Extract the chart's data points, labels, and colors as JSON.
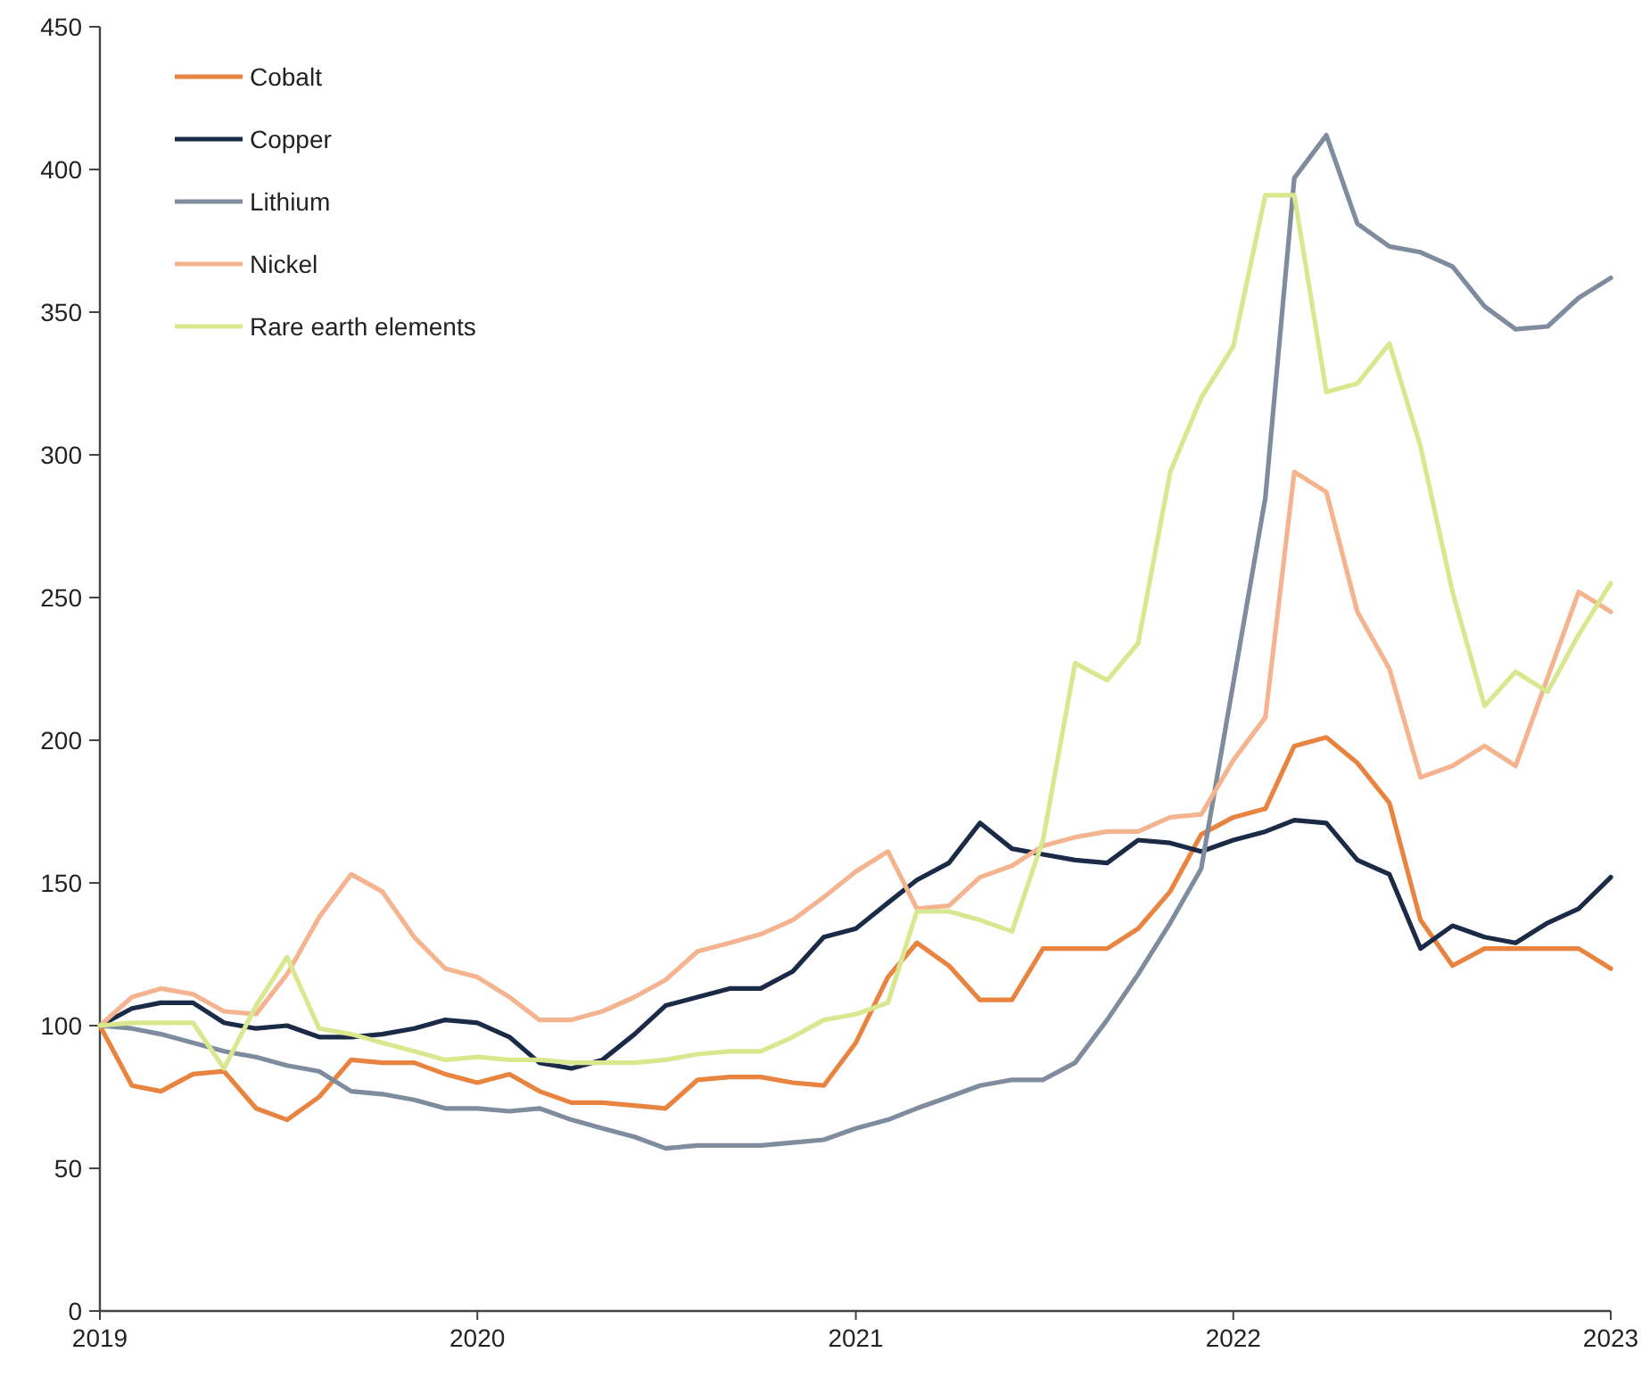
{
  "chart_data": {
    "type": "line",
    "x": [
      "2019-01",
      "2019-02",
      "2019-03",
      "2019-04",
      "2019-05",
      "2019-06",
      "2019-07",
      "2019-08",
      "2019-09",
      "2019-10",
      "2019-11",
      "2019-12",
      "2020-01",
      "2020-02",
      "2020-03",
      "2020-04",
      "2020-05",
      "2020-06",
      "2020-07",
      "2020-08",
      "2020-09",
      "2020-10",
      "2020-11",
      "2020-12",
      "2021-01",
      "2021-02",
      "2021-03",
      "2021-04",
      "2021-05",
      "2021-06",
      "2021-07",
      "2021-08",
      "2021-09",
      "2021-10",
      "2021-11",
      "2021-12",
      "2022-01",
      "2022-02",
      "2022-03",
      "2022-04",
      "2022-05",
      "2022-06",
      "2022-07",
      "2022-08",
      "2022-09",
      "2022-10",
      "2022-11",
      "2022-12",
      "2023-01"
    ],
    "series": [
      {
        "name": "Cobalt",
        "color": "#e8843f",
        "values": [
          100,
          79,
          77,
          83,
          84,
          71,
          67,
          75,
          88,
          87,
          87,
          83,
          80,
          83,
          77,
          73,
          73,
          72,
          71,
          81,
          82,
          82,
          80,
          79,
          94,
          117,
          129,
          121,
          109,
          109,
          127,
          127,
          127,
          134,
          147,
          167,
          173,
          176,
          198,
          201,
          192,
          178,
          137,
          121,
          127,
          127,
          127,
          127,
          120
        ]
      },
      {
        "name": "Copper",
        "color": "#1b2a47",
        "values": [
          100,
          106,
          108,
          108,
          101,
          99,
          100,
          96,
          96,
          97,
          99,
          102,
          101,
          96,
          87,
          85,
          88,
          97,
          107,
          110,
          113,
          113,
          119,
          131,
          134,
          143,
          151,
          157,
          171,
          162,
          160,
          158,
          157,
          165,
          164,
          161,
          165,
          168,
          172,
          171,
          158,
          153,
          127,
          135,
          131,
          129,
          136,
          141,
          152
        ]
      },
      {
        "name": "Lithium",
        "color": "#7f8c9e",
        "values": [
          100,
          99,
          97,
          94,
          91,
          89,
          86,
          84,
          77,
          76,
          74,
          71,
          71,
          70,
          71,
          67,
          64,
          61,
          57,
          58,
          58,
          58,
          59,
          60,
          64,
          67,
          71,
          75,
          79,
          81,
          81,
          87,
          102,
          118,
          136,
          155,
          220,
          285,
          397,
          412,
          381,
          373,
          371,
          366,
          352,
          344,
          345,
          355,
          362
        ]
      },
      {
        "name": "Nickel",
        "color": "#f4b48f",
        "values": [
          100,
          110,
          113,
          111,
          105,
          104,
          118,
          138,
          153,
          147,
          131,
          120,
          117,
          110,
          102,
          102,
          105,
          110,
          116,
          126,
          129,
          132,
          137,
          145,
          154,
          161,
          141,
          142,
          152,
          156,
          163,
          166,
          168,
          168,
          173,
          174,
          193,
          208,
          294,
          287,
          245,
          225,
          187,
          191,
          198,
          191,
          222,
          252,
          245
        ]
      },
      {
        "name": "Rare earth elements",
        "color": "#d9e78f",
        "values": [
          100,
          101,
          101,
          101,
          85,
          107,
          124,
          99,
          97,
          94,
          91,
          88,
          89,
          88,
          88,
          87,
          87,
          87,
          88,
          90,
          91,
          91,
          96,
          102,
          104,
          108,
          140,
          140,
          137,
          133,
          165,
          227,
          221,
          234,
          294,
          320,
          338,
          391,
          391,
          322,
          325,
          339,
          303,
          252,
          212,
          224,
          217,
          237,
          255
        ]
      }
    ],
    "xlim": [
      "2019-01",
      "2023-01"
    ],
    "xticks": [
      "2019",
      "2020",
      "2021",
      "2022",
      "2023"
    ],
    "ylim": [
      0,
      450
    ],
    "yticks": [
      0,
      50,
      100,
      150,
      200,
      250,
      300,
      350,
      400,
      450
    ],
    "grid": false,
    "legend": "top left"
  }
}
